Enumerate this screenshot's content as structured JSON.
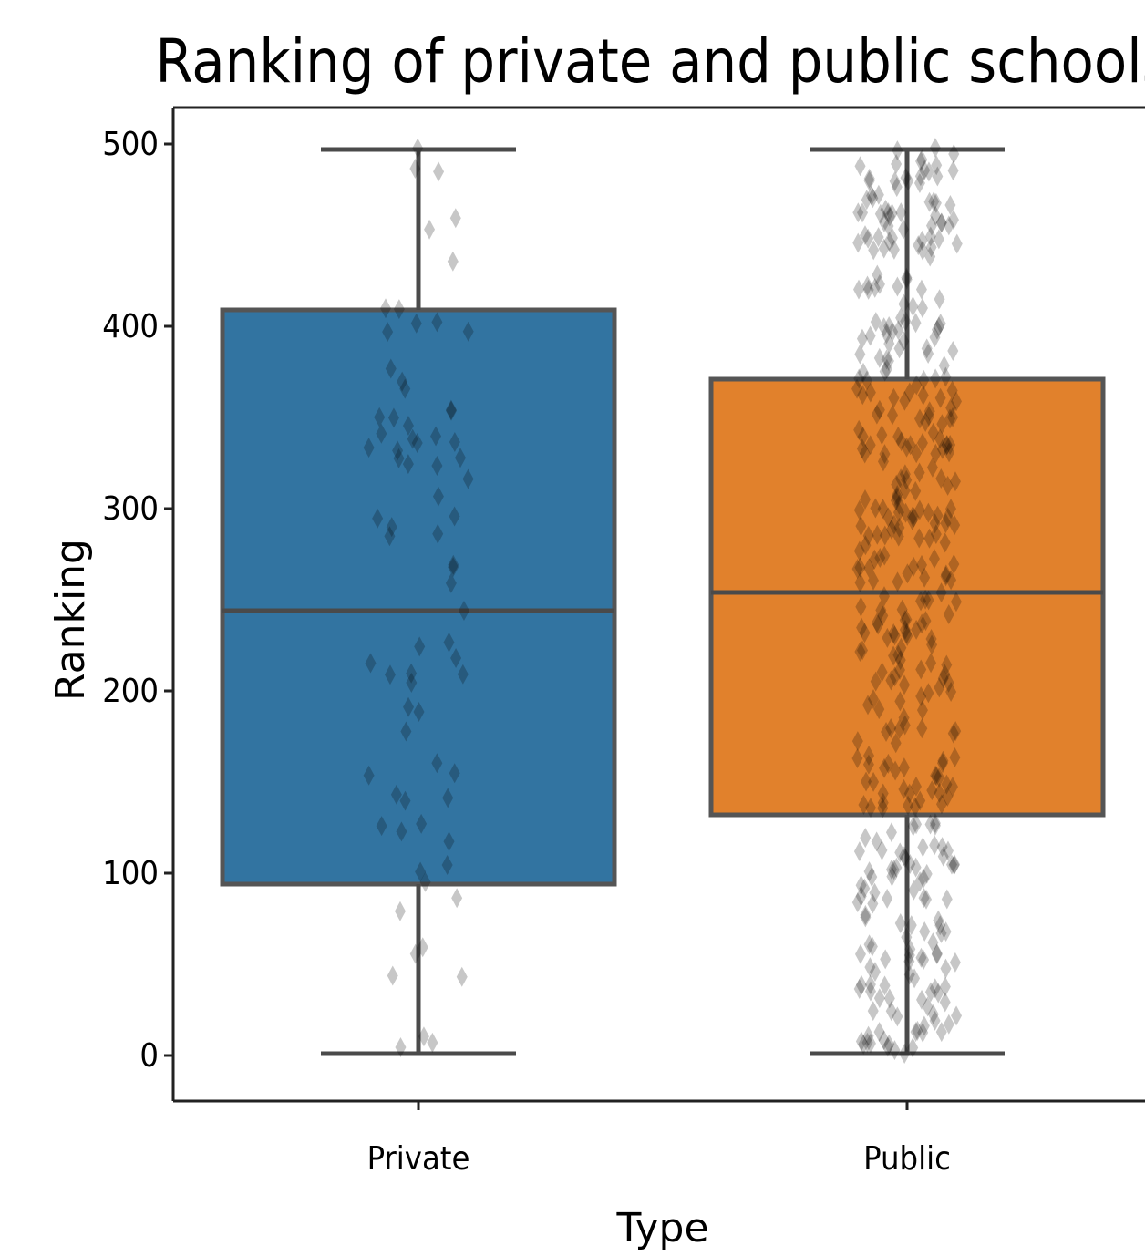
{
  "chart_data": {
    "type": "boxplot",
    "title": "Ranking of private and public schools",
    "xlabel": "Type",
    "ylabel": "Ranking",
    "categories": [
      "Private",
      "Public"
    ],
    "ylim": [
      -25,
      520
    ],
    "yticks": [
      0,
      100,
      200,
      300,
      400,
      500
    ],
    "ytick_labels": [
      "0",
      "100",
      "200",
      "300",
      "400",
      "500"
    ],
    "boxes": [
      {
        "name": "Private",
        "color": "#3274a1",
        "whisker_low": 1,
        "q1": 94,
        "median": 244,
        "q3": 409,
        "whisker_high": 497
      },
      {
        "name": "Public",
        "color": "#e1812c",
        "whisker_low": 1,
        "q1": 132,
        "median": 254,
        "q3": 371,
        "whisker_high": 497
      }
    ],
    "strip_points": [
      {
        "category": "Private",
        "count": 75,
        "range": [
          0,
          500
        ]
      },
      {
        "category": "Public",
        "count": 425,
        "range": [
          0,
          500
        ]
      }
    ],
    "point_color": "#000000",
    "grid": false,
    "legend": "none"
  }
}
